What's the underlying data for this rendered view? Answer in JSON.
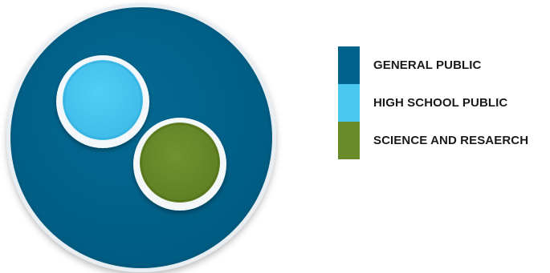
{
  "diagram": {
    "groups": [
      {
        "id": "general",
        "label": "GENERAL PUBLIC",
        "color": "#00618a"
      },
      {
        "id": "highschool",
        "label": "HIGH SCHOOL PUBLIC",
        "color": "#4ac6f1"
      },
      {
        "id": "science",
        "label": "SCIENCE AND RESAERCH",
        "color": "#688a28"
      }
    ]
  }
}
